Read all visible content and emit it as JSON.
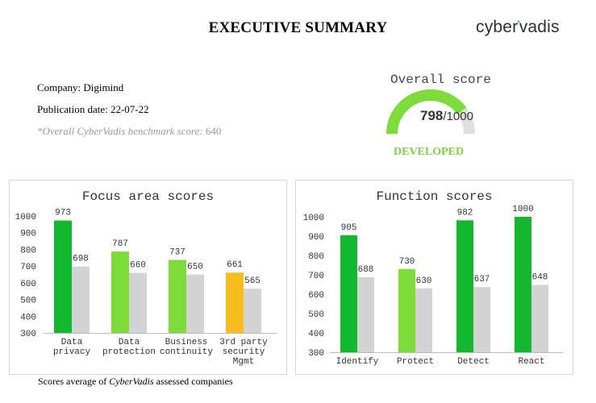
{
  "header": {
    "title": "EXECUTIVE SUMMARY",
    "logo_left": "cyber",
    "logo_dot": "•",
    "logo_right": "vadis"
  },
  "company": {
    "label": "Company: Digimind",
    "publication": "Publication date: 22-07-22",
    "benchmark_label": "*Overall CyberVadis benchmark score:",
    "benchmark_value": "640"
  },
  "overall": {
    "title": "Overall score",
    "score": "798",
    "denominator": "/1000",
    "level": "DEVELOPED",
    "value": 798,
    "max": 1000
  },
  "colors": {
    "dark_green": "#12b82d",
    "light_green": "#7ddb3a",
    "orange": "#f9bc1e",
    "grey": "#d3d3d3",
    "gauge_track": "#e0e0e0"
  },
  "chart_data": [
    {
      "type": "bar",
      "title": "Focus area scores",
      "categories": [
        [
          "Data",
          "privacy"
        ],
        [
          "Data",
          "protection"
        ],
        [
          "Business",
          "continuity"
        ],
        [
          "3rd party",
          "security",
          "Mgmt"
        ]
      ],
      "ylim": [
        300,
        1000
      ],
      "yticks": [
        1000,
        900,
        800,
        700,
        600,
        500,
        400,
        300
      ],
      "series": [
        {
          "values": [
            973,
            787,
            737,
            661
          ],
          "colors": [
            "#12b82d",
            "#7ddb3a",
            "#7ddb3a",
            "#f9bc1e"
          ]
        },
        {
          "values": [
            698,
            660,
            650,
            565
          ],
          "colors": [
            "#d3d3d3",
            "#d3d3d3",
            "#d3d3d3",
            "#d3d3d3"
          ]
        }
      ]
    },
    {
      "type": "bar",
      "title": "Function scores",
      "categories": [
        [
          "Identify"
        ],
        [
          "Protect"
        ],
        [
          "Detect"
        ],
        [
          "React"
        ]
      ],
      "ylim": [
        300,
        1000
      ],
      "yticks": [
        1000,
        900,
        800,
        700,
        600,
        500,
        400,
        300
      ],
      "series": [
        {
          "values": [
            905,
            730,
            982,
            1000
          ],
          "colors": [
            "#12b82d",
            "#7ddb3a",
            "#12b82d",
            "#12b82d"
          ]
        },
        {
          "values": [
            688,
            630,
            637,
            648
          ],
          "colors": [
            "#d3d3d3",
            "#d3d3d3",
            "#d3d3d3",
            "#d3d3d3"
          ]
        }
      ]
    }
  ],
  "footnote": {
    "prefix": "Scores average of ",
    "brand": "CyberVadis",
    "suffix": " assessed companies"
  }
}
